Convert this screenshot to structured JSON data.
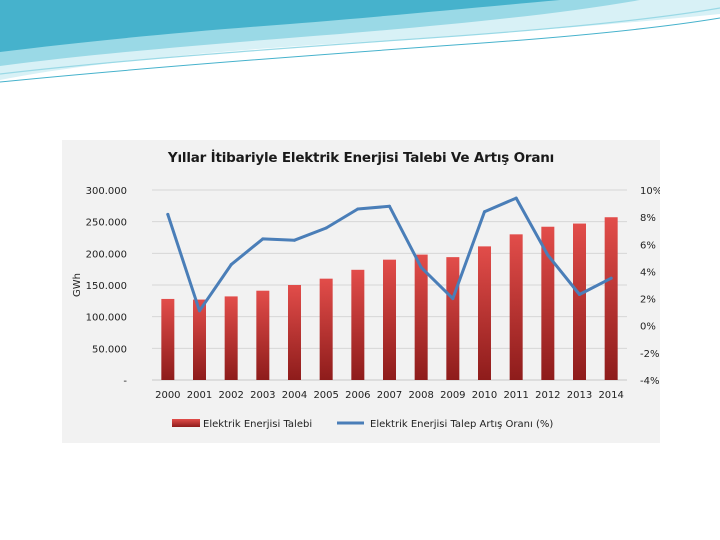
{
  "colors": {
    "bar_top": "#e24d4a",
    "bar_bottom": "#8e1c1b",
    "line": "#4a7eb8",
    "grid": "#d6d6d6",
    "panel_bg": "#f2f2f2",
    "wave_light": "#d8f1f6",
    "wave_mid": "#9ad9e6",
    "wave_dark": "#46b2cc"
  },
  "chart_data": {
    "type": "bar",
    "title": "Yıllar İtibariyle Elektrik Enerjisi Talebi Ve Artış Oranı",
    "xlabel": "",
    "ylabel": "GWh",
    "categories": [
      "2000",
      "2001",
      "2002",
      "2003",
      "2004",
      "2005",
      "2006",
      "2007",
      "2008",
      "2009",
      "2010",
      "2011",
      "2012",
      "2013",
      "2014"
    ],
    "ylim": [
      0,
      300000
    ],
    "y2lim": [
      -4,
      10
    ],
    "yticks": [
      "-",
      "50.000",
      "100.000",
      "150.000",
      "200.000",
      "250.000",
      "300.000"
    ],
    "y2ticks": [
      "-4%",
      "-2%",
      "0%",
      "2%",
      "4%",
      "6%",
      "8%",
      "10%"
    ],
    "grid": true,
    "legend_position": "bottom",
    "series": [
      {
        "name": "Elektrik Enerjisi Talebi",
        "type": "bar",
        "axis": "left",
        "values": [
          128000,
          127000,
          132000,
          141000,
          150000,
          160000,
          174000,
          190000,
          198000,
          194000,
          211000,
          230000,
          242000,
          247000,
          257000
        ]
      },
      {
        "name": "Elektrik Enerjisi Talep Artış Oranı (%)",
        "type": "line",
        "axis": "right",
        "values": [
          8.2,
          1.1,
          4.5,
          6.4,
          6.3,
          7.2,
          8.6,
          8.8,
          4.3,
          2.0,
          8.4,
          9.4,
          5.2,
          2.3,
          3.5
        ]
      }
    ]
  }
}
